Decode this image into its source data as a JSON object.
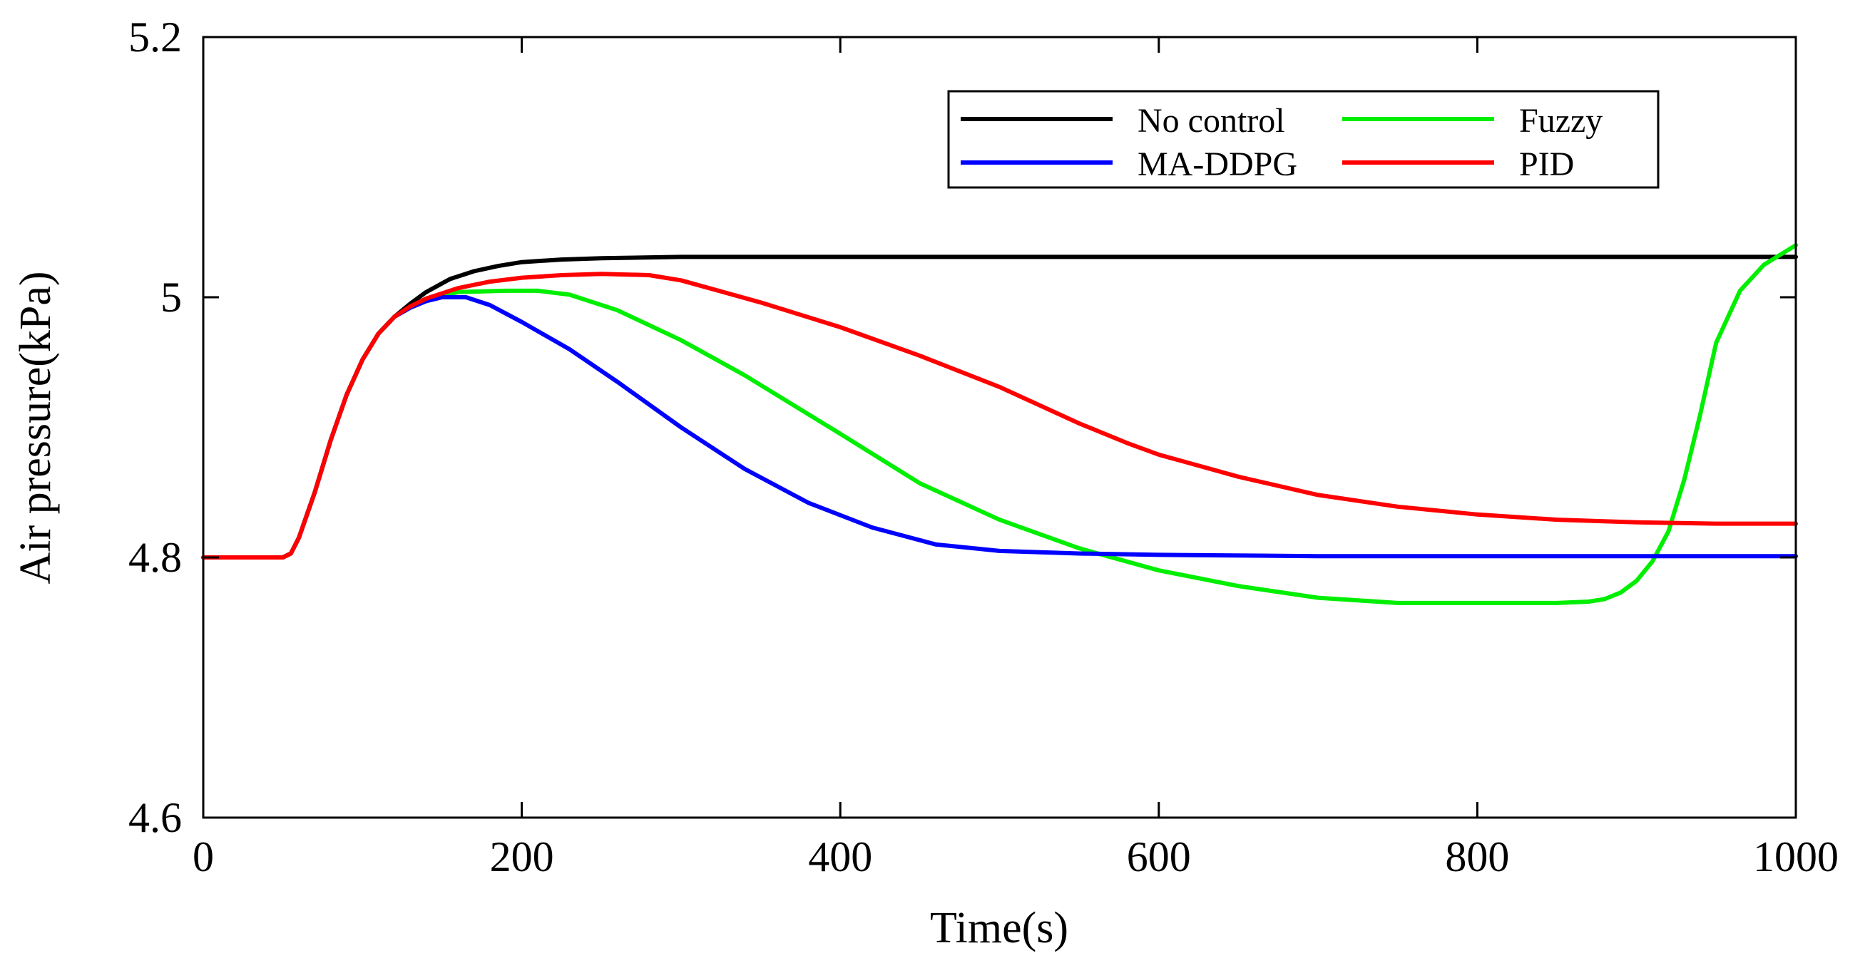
{
  "chart_data": {
    "type": "line",
    "title": "",
    "xlabel": "Time(s)",
    "ylabel": "Air pressure(kPa)",
    "xlim": [
      0,
      1000
    ],
    "ylim": [
      4.6,
      5.2
    ],
    "xticks": [
      0,
      200,
      400,
      600,
      800,
      1000
    ],
    "yticks": [
      4.6,
      4.8,
      5,
      5.2
    ],
    "xtick_labels": [
      "0",
      "200",
      "400",
      "600",
      "800",
      "1000"
    ],
    "ytick_labels": [
      "4.6",
      "4.8",
      "5",
      "5.2"
    ],
    "grid": false,
    "legend_position": "top-right",
    "series": [
      {
        "name": "No control",
        "color": "#000000",
        "x": [
          0,
          50,
          55,
          60,
          70,
          80,
          90,
          100,
          110,
          120,
          130,
          140,
          155,
          170,
          185,
          200,
          225,
          250,
          300,
          400,
          500,
          600,
          800,
          1000
        ],
        "y": [
          4.8,
          4.8,
          4.803,
          4.815,
          4.85,
          4.89,
          4.925,
          4.952,
          4.972,
          4.985,
          4.995,
          5.004,
          5.014,
          5.02,
          5.024,
          5.027,
          5.029,
          5.03,
          5.031,
          5.031,
          5.031,
          5.031,
          5.031,
          5.031
        ]
      },
      {
        "name": "Fuzzy",
        "color": "#00ee00",
        "x": [
          0,
          50,
          55,
          60,
          70,
          80,
          90,
          100,
          110,
          120,
          130,
          140,
          160,
          190,
          210,
          230,
          260,
          300,
          340,
          400,
          450,
          500,
          550,
          600,
          650,
          700,
          750,
          800,
          850,
          870,
          880,
          890,
          900,
          910,
          920,
          930,
          940,
          950,
          965,
          980,
          1000
        ],
        "y": [
          4.8,
          4.8,
          4.803,
          4.815,
          4.85,
          4.89,
          4.925,
          4.952,
          4.972,
          4.985,
          4.992,
          4.998,
          5.004,
          5.005,
          5.005,
          5.002,
          4.99,
          4.967,
          4.94,
          4.895,
          4.857,
          4.829,
          4.807,
          4.79,
          4.778,
          4.769,
          4.765,
          4.765,
          4.765,
          4.766,
          4.768,
          4.773,
          4.782,
          4.797,
          4.82,
          4.86,
          4.91,
          4.965,
          5.005,
          5.025,
          5.04
        ]
      },
      {
        "name": "MA-DDPG",
        "color": "#0000ff",
        "x": [
          0,
          50,
          55,
          60,
          70,
          80,
          90,
          100,
          110,
          120,
          130,
          140,
          150,
          165,
          180,
          200,
          230,
          260,
          300,
          340,
          380,
          420,
          460,
          500,
          550,
          600,
          700,
          800,
          900,
          1000
        ],
        "y": [
          4.8,
          4.8,
          4.803,
          4.815,
          4.85,
          4.89,
          4.925,
          4.952,
          4.972,
          4.985,
          4.992,
          4.997,
          5.0,
          5.0,
          4.994,
          4.981,
          4.96,
          4.935,
          4.9,
          4.868,
          4.842,
          4.823,
          4.81,
          4.805,
          4.803,
          4.802,
          4.801,
          4.801,
          4.801,
          4.801
        ]
      },
      {
        "name": "PID",
        "color": "#ff0000",
        "x": [
          0,
          50,
          55,
          60,
          70,
          80,
          90,
          100,
          110,
          120,
          130,
          140,
          160,
          180,
          200,
          225,
          250,
          280,
          300,
          350,
          400,
          450,
          500,
          550,
          580,
          600,
          650,
          700,
          750,
          800,
          850,
          900,
          950,
          1000
        ],
        "y": [
          4.8,
          4.8,
          4.803,
          4.815,
          4.85,
          4.89,
          4.925,
          4.952,
          4.972,
          4.985,
          4.993,
          4.999,
          5.007,
          5.012,
          5.015,
          5.017,
          5.018,
          5.017,
          5.013,
          4.996,
          4.977,
          4.955,
          4.931,
          4.903,
          4.888,
          4.879,
          4.862,
          4.848,
          4.839,
          4.833,
          4.829,
          4.827,
          4.826,
          4.826
        ]
      }
    ]
  }
}
